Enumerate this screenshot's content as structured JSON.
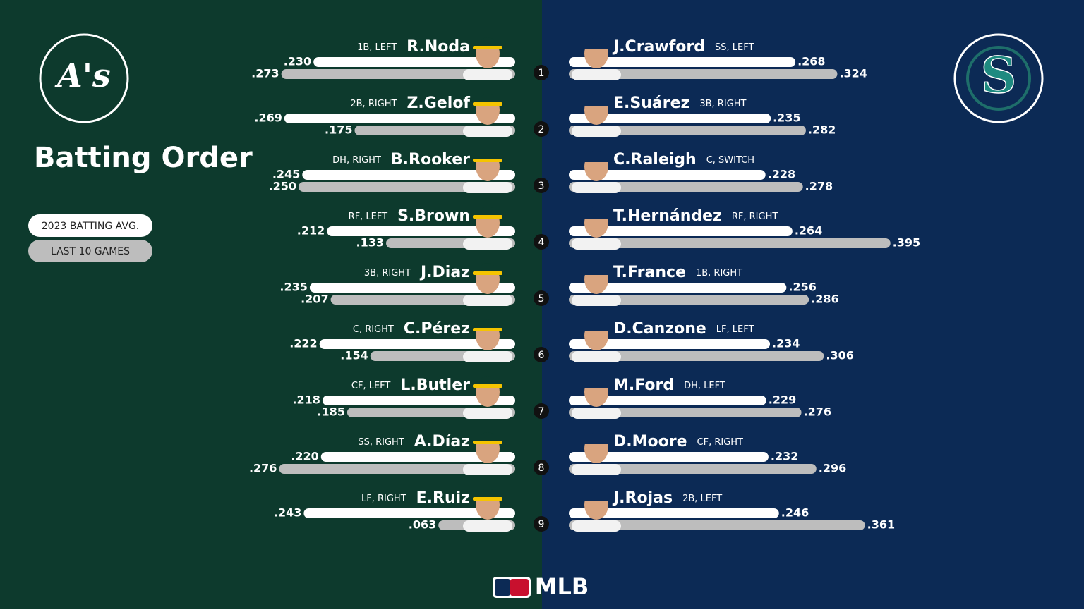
{
  "title": "Batting Order",
  "legend": [
    "2023 BATTING AVG.",
    "LAST 10 GAMES"
  ],
  "batting_order": [
    1,
    2,
    3,
    4,
    5,
    6,
    7,
    8,
    9
  ],
  "footer": "MLB",
  "teams": [
    {
      "logo": "A's",
      "players": [
        {
          "name": "R.Noda",
          "position": "1B, LEFT"
        },
        {
          "name": "Z.Gelof",
          "position": "2B, RIGHT"
        },
        {
          "name": "B.Rooker",
          "position": "DH, RIGHT"
        },
        {
          "name": "S.Brown",
          "position": "RF, LEFT"
        },
        {
          "name": "J.Diaz",
          "position": "3B, RIGHT"
        },
        {
          "name": "C.Pérez",
          "position": "C, RIGHT"
        },
        {
          "name": "L.Butler",
          "position": "CF, LEFT"
        },
        {
          "name": "A.Díaz",
          "position": "SS, RIGHT"
        },
        {
          "name": "E.Ruiz",
          "position": "LF, RIGHT"
        }
      ],
      "avg_2023": {
        "values": [
          0.23,
          0.269,
          0.245,
          0.212,
          0.235,
          0.222,
          0.218,
          0.22,
          0.243
        ],
        "value_labels": [
          ".230",
          ".269",
          ".245",
          ".212",
          ".235",
          ".222",
          ".218",
          ".220",
          ".243"
        ]
      },
      "last_10": {
        "values": [
          0.273,
          0.175,
          0.25,
          0.133,
          0.207,
          0.154,
          0.185,
          0.276,
          0.063
        ],
        "value_labels": [
          ".273",
          ".175",
          ".250",
          ".133",
          ".207",
          ".154",
          ".185",
          ".276",
          ".063"
        ]
      }
    },
    {
      "logo": "S",
      "players": [
        {
          "name": "J.Crawford",
          "position": "SS, LEFT"
        },
        {
          "name": "E.Suárez",
          "position": "3B, RIGHT"
        },
        {
          "name": "C.Raleigh",
          "position": "C, SWITCH"
        },
        {
          "name": "T.Hernández",
          "position": "RF, RIGHT"
        },
        {
          "name": "T.France",
          "position": "1B, RIGHT"
        },
        {
          "name": "D.Canzone",
          "position": "LF, LEFT"
        },
        {
          "name": "M.Ford",
          "position": "DH, LEFT"
        },
        {
          "name": "D.Moore",
          "position": "CF, RIGHT"
        },
        {
          "name": "J.Rojas",
          "position": "2B, LEFT"
        }
      ],
      "avg_2023": {
        "values": [
          0.268,
          0.235,
          0.228,
          0.264,
          0.256,
          0.234,
          0.229,
          0.232,
          0.246
        ],
        "value_labels": [
          ".268",
          ".235",
          ".228",
          ".264",
          ".256",
          ".234",
          ".229",
          ".232",
          ".246"
        ]
      },
      "last_10": {
        "values": [
          0.324,
          0.282,
          0.278,
          0.395,
          0.286,
          0.306,
          0.276,
          0.296,
          0.361
        ],
        "value_labels": [
          ".324",
          ".282",
          ".278",
          ".395",
          ".286",
          ".306",
          ".276",
          ".296",
          ".361"
        ]
      }
    }
  ]
}
